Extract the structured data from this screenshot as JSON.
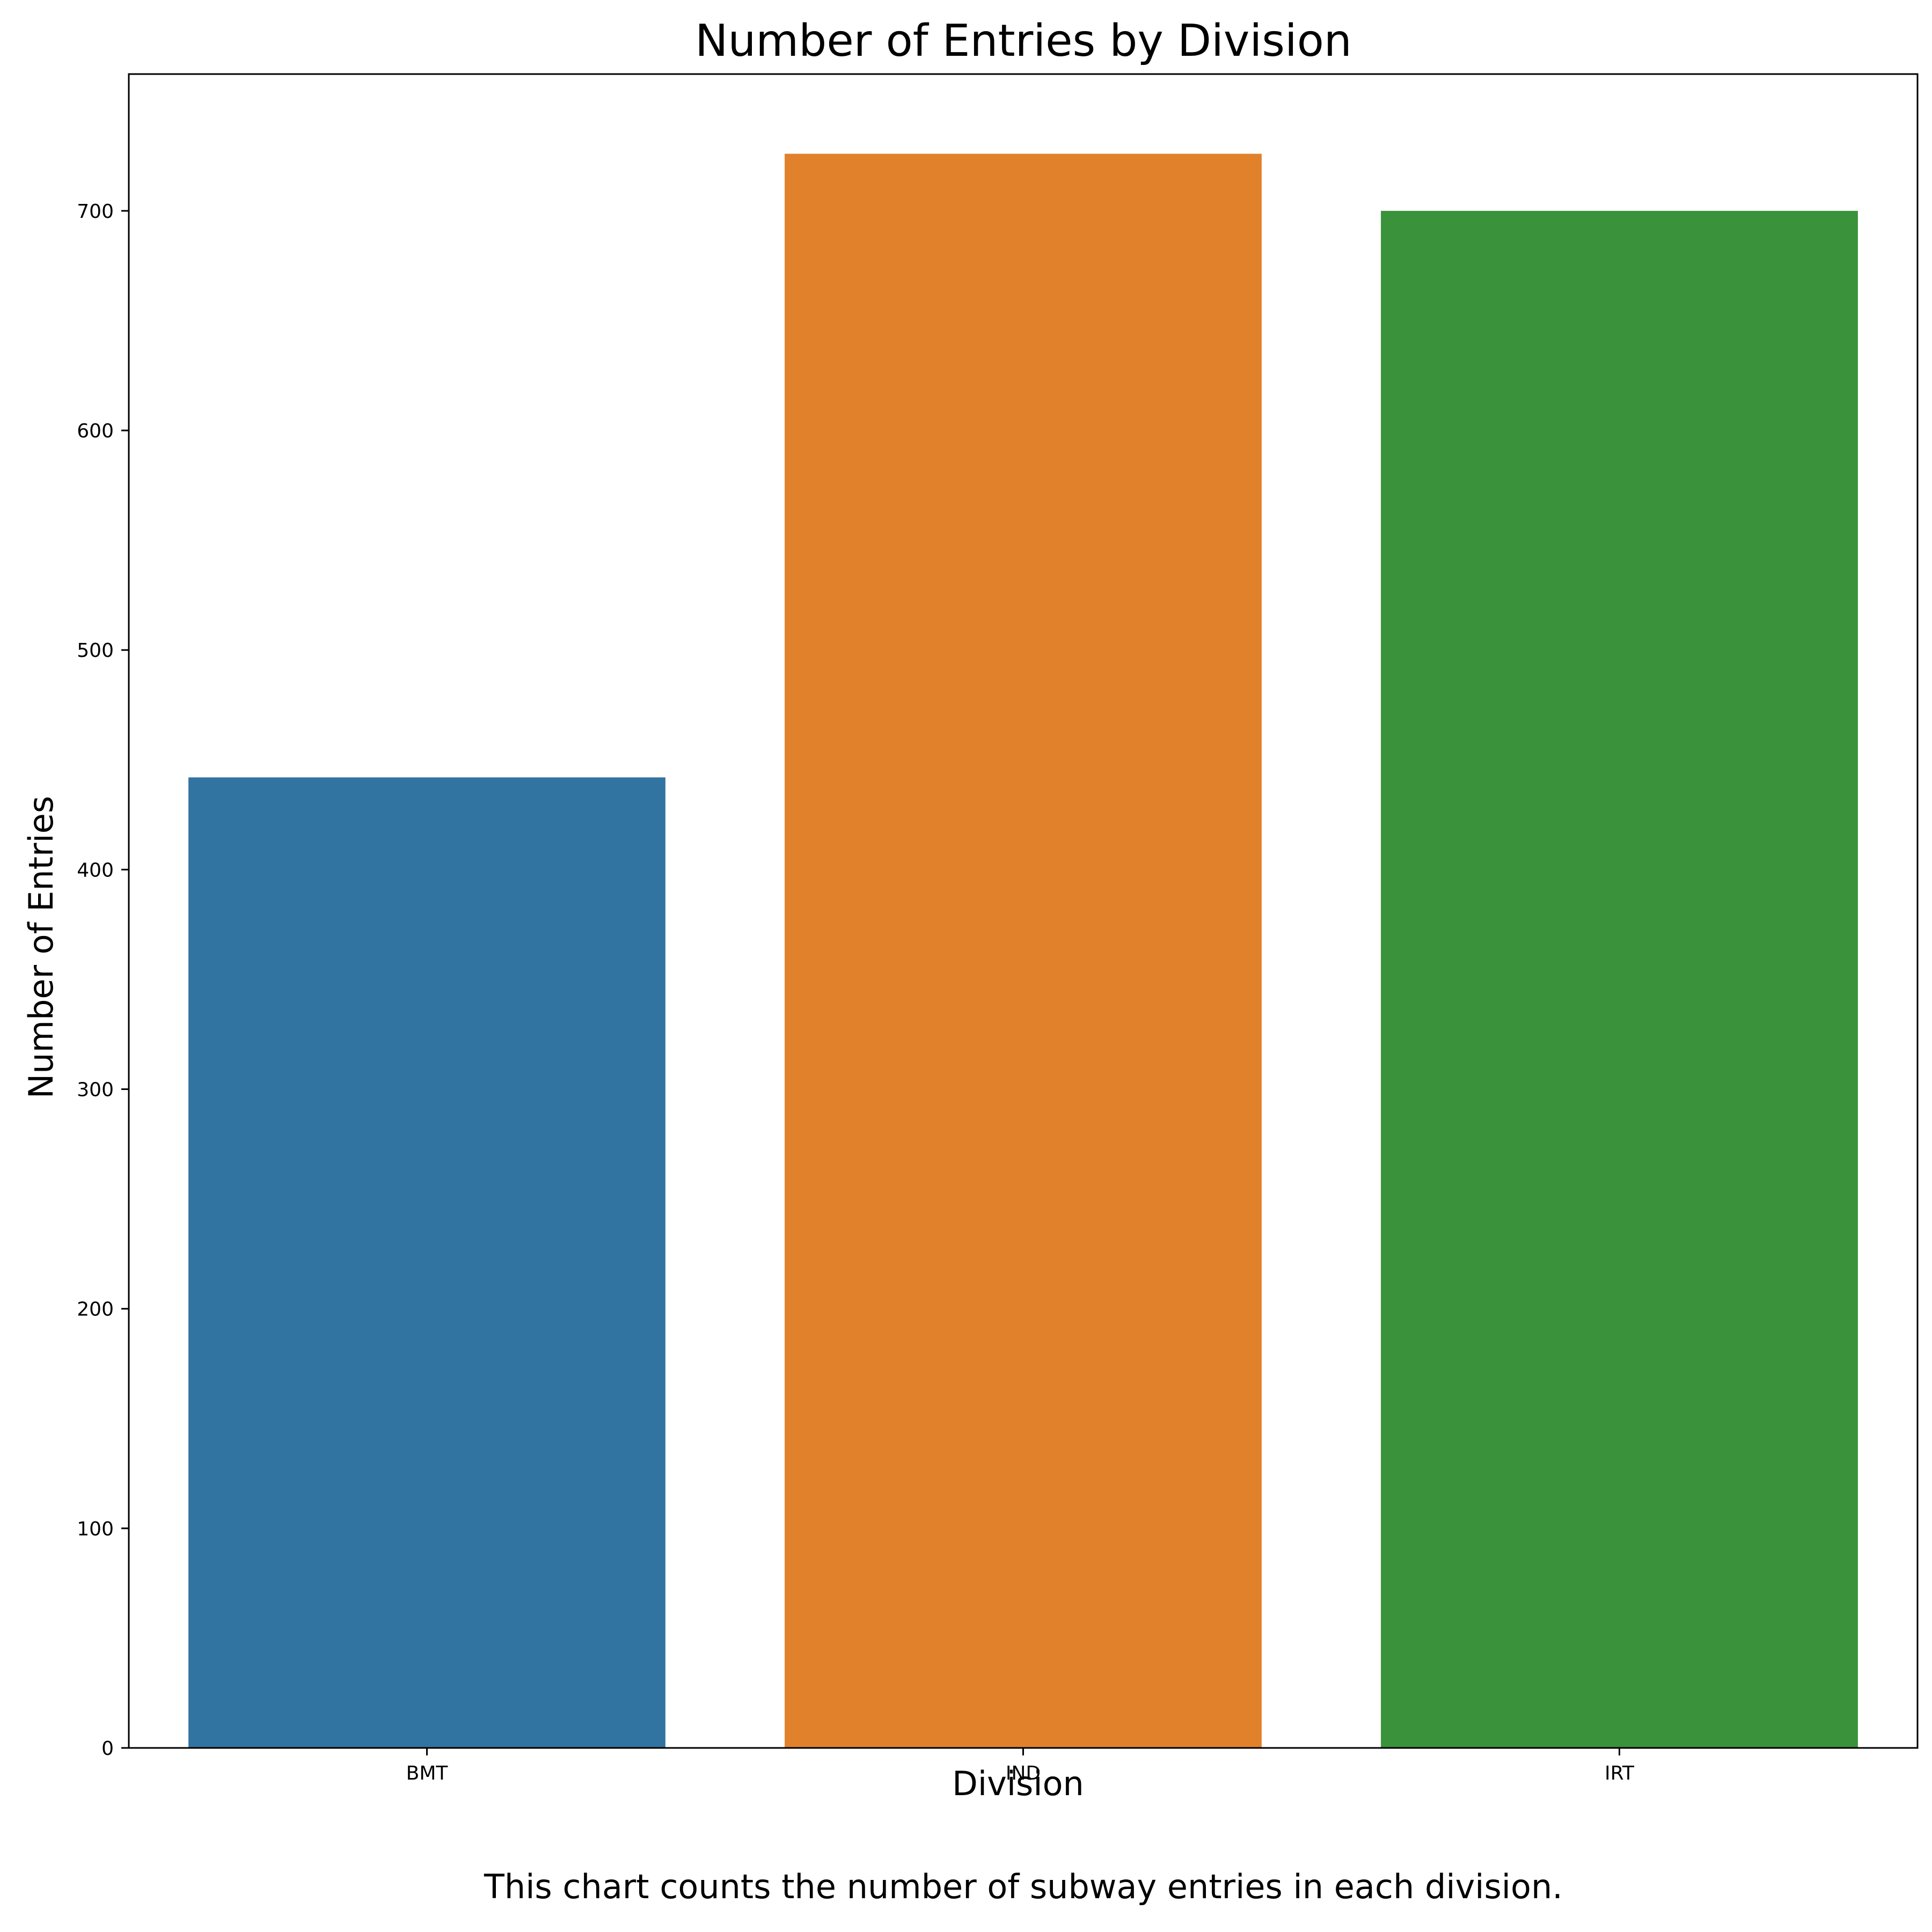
{
  "chart_data": {
    "type": "bar",
    "title": "Number of Entries by Division",
    "xlabel": "Division",
    "ylabel": "Number of Entries",
    "caption": "This chart counts the number of subway entries in each division.",
    "categories": [
      "BMT",
      "IND",
      "IRT"
    ],
    "values": [
      442,
      726,
      700
    ],
    "colors": [
      "#3274a1",
      "#e1812c",
      "#3a923a"
    ],
    "ylim": [
      0,
      762.3
    ],
    "yticks": [
      0,
      100,
      200,
      300,
      400,
      500,
      600,
      700
    ],
    "grid": false,
    "legend": "none"
  }
}
